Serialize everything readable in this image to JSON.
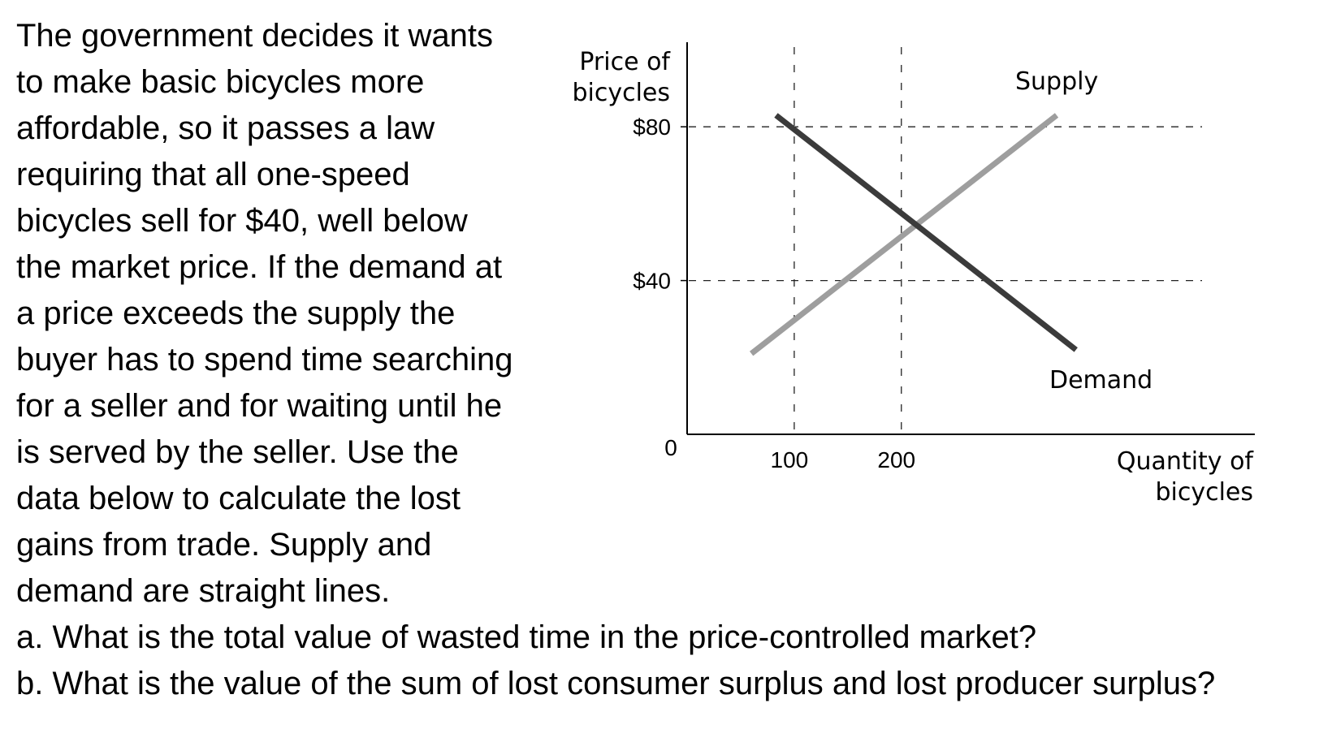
{
  "question": {
    "lines": [
      "The government decides it wants",
      "to make basic bicycles more",
      "affordable, so it passes a law",
      "requiring that all one-speed",
      "bicycles sell for $40, well below",
      "the market price. If the demand at",
      "a price exceeds the supply the",
      "buyer has to spend time searching",
      "for a seller and for waiting until he",
      "is served by the seller. Use the",
      "data below to calculate the lost",
      "gains from trade. Supply and",
      "demand are straight lines.",
      "a. What is the total value of wasted time in the price-controlled market?",
      "b. What is the value of the sum of lost consumer surplus and lost producer surplus?"
    ]
  },
  "chart_data": {
    "type": "line",
    "ylabel_lines": [
      "Price of",
      "bicycles"
    ],
    "xlabel_lines": [
      "Quantity of",
      "bicycles"
    ],
    "origin_label": "0",
    "x_ticks": [
      {
        "value": 100,
        "label": "100"
      },
      {
        "value": 200,
        "label": "200"
      }
    ],
    "y_ticks": [
      {
        "value": 40,
        "label": "$40"
      },
      {
        "value": 80,
        "label": "$80"
      }
    ],
    "xlim": [
      0,
      530
    ],
    "ylim": [
      0,
      102
    ],
    "grid": "dashed reference lines at ticks",
    "series": [
      {
        "name": "Supply",
        "x": [
          60,
          345
        ],
        "y": [
          21,
          83
        ],
        "color": "#9e9e9e"
      },
      {
        "name": "Demand",
        "x": [
          83,
          363
        ],
        "y": [
          83,
          22
        ],
        "color": "#3b3b3b"
      }
    ]
  }
}
